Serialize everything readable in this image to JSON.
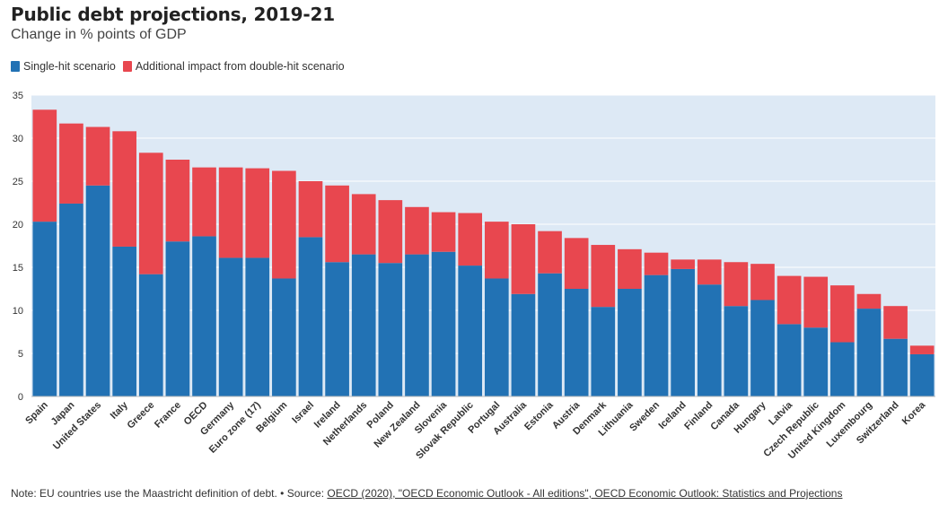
{
  "header": {
    "title": "Public debt projections, 2019-21",
    "subtitle": "Change in % points of GDP"
  },
  "footer": {
    "note_prefix": "Note: EU countries use the Maastricht definition of debt. • Source: ",
    "source_link": "OECD (2020), \"OECD Economic Outlook - All editions\", OECD Economic Outlook: Statistics and Projections"
  },
  "chart_data": {
    "type": "bar",
    "stacked": true,
    "categories": [
      "Spain",
      "Japan",
      "United States",
      "Italy",
      "Greece",
      "France",
      "OECD",
      "Germany",
      "Euro zone (17)",
      "Belgium",
      "Israel",
      "Ireland",
      "Netherlands",
      "Poland",
      "New Zealand",
      "Slovenia",
      "Slovak Republic",
      "Portugal",
      "Australia",
      "Estonia",
      "Austria",
      "Denmark",
      "Lithuania",
      "Sweden",
      "Iceland",
      "Finland",
      "Canada",
      "Hungary",
      "Latvia",
      "Czech Republic",
      "United Kingdom",
      "Luxembourg",
      "Switzerland",
      "Korea"
    ],
    "series": [
      {
        "name": "Single-hit scenario",
        "color": "#2272b4",
        "values": [
          20.3,
          22.4,
          24.5,
          17.4,
          14.2,
          18.0,
          18.6,
          16.1,
          16.1,
          13.7,
          18.5,
          15.6,
          16.5,
          15.5,
          16.5,
          16.8,
          15.2,
          13.7,
          11.9,
          14.3,
          12.5,
          10.4,
          12.5,
          14.1,
          14.8,
          13.0,
          10.5,
          11.2,
          8.4,
          8.0,
          6.3,
          10.2,
          6.7,
          4.9
        ]
      },
      {
        "name": "Additional impact from double-hit scenario",
        "color": "#e8474f",
        "values": [
          13.0,
          9.3,
          6.8,
          13.4,
          14.1,
          9.5,
          8.0,
          10.5,
          10.4,
          12.5,
          6.5,
          8.9,
          7.0,
          7.3,
          5.5,
          4.6,
          6.1,
          6.6,
          8.1,
          4.9,
          5.9,
          7.2,
          4.6,
          2.6,
          1.1,
          2.9,
          5.1,
          4.2,
          5.6,
          5.9,
          6.6,
          1.7,
          3.8,
          1.0
        ]
      }
    ],
    "ylim": [
      0,
      35
    ],
    "yticks": [
      0,
      5,
      10,
      15,
      20,
      25,
      30,
      35
    ],
    "legend_position": "top-left",
    "plot_background": "#dde9f5",
    "xlabel": "",
    "ylabel": ""
  }
}
